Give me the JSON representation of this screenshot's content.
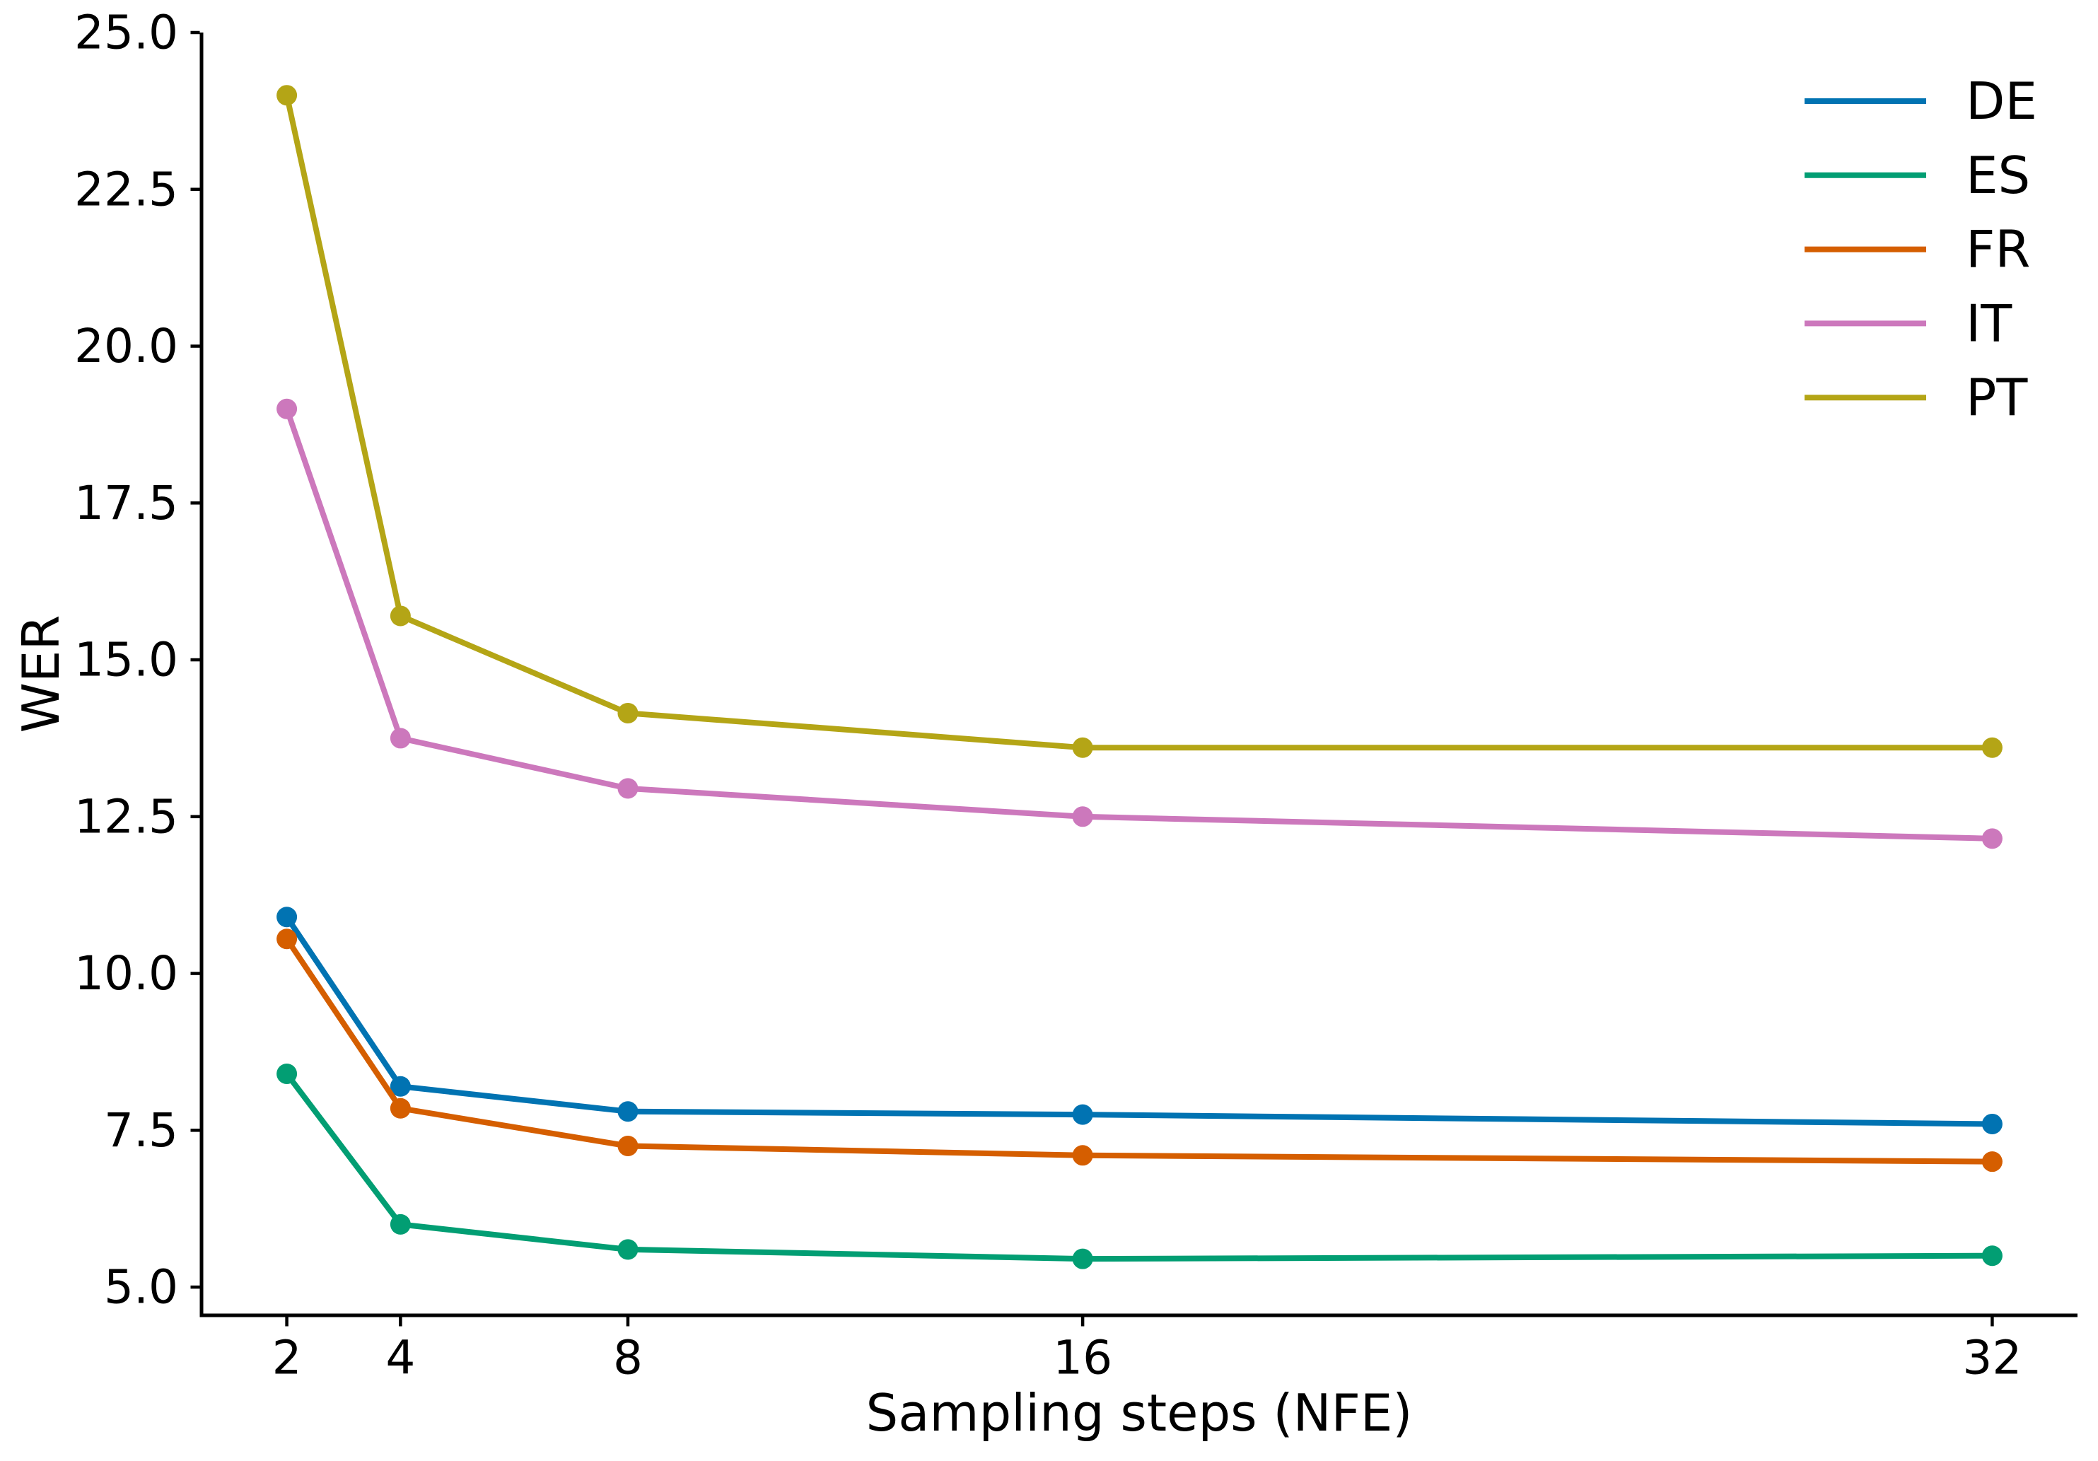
{
  "chart_data": {
    "type": "line",
    "title": "",
    "xlabel": "Sampling steps (NFE)",
    "ylabel": "WER",
    "x": [
      2,
      4,
      8,
      16,
      32
    ],
    "series": [
      {
        "name": "DE",
        "color": "#0173b2",
        "values": [
          10.9,
          8.2,
          7.8,
          7.75,
          7.6
        ]
      },
      {
        "name": "ES",
        "color": "#029e73",
        "values": [
          8.4,
          6.0,
          5.6,
          5.45,
          5.5
        ]
      },
      {
        "name": "FR",
        "color": "#d55e00",
        "values": [
          10.55,
          7.85,
          7.25,
          7.1,
          7.0
        ]
      },
      {
        "name": "IT",
        "color": "#cc78bc",
        "values": [
          19.0,
          13.75,
          12.95,
          12.5,
          12.15
        ]
      },
      {
        "name": "PT",
        "color": "#b4a516",
        "values": [
          24.0,
          15.7,
          14.15,
          13.6,
          13.6
        ]
      }
    ],
    "xticks": {
      "values": [
        2,
        4,
        8,
        16,
        32
      ],
      "labels": [
        "2",
        "4",
        "8",
        "16",
        "32"
      ]
    },
    "yticks": {
      "values": [
        5.0,
        7.5,
        10.0,
        12.5,
        15.0,
        17.5,
        20.0,
        22.5,
        25.0
      ],
      "labels": [
        "5.0",
        "7.5",
        "10.0",
        "12.5",
        "15.0",
        "17.5",
        "20.0",
        "22.5",
        "25.0"
      ]
    },
    "xlim": [
      0.5,
      33.5
    ],
    "ylim": [
      4.55,
      25.0
    ],
    "x_scale": "linear",
    "grid": false,
    "legend_position": "upper right",
    "legend_frame": false,
    "marker": "circle",
    "axis_color": "#000000",
    "text_color": "#000000",
    "background": "#ffffff"
  }
}
